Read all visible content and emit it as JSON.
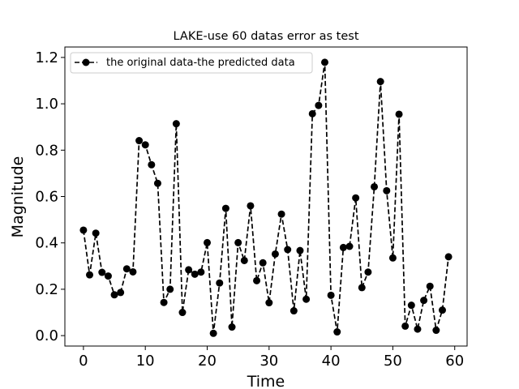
{
  "chart_data": {
    "type": "line",
    "title": "LAKE-use 60 datas error as test",
    "xlabel": "Time",
    "ylabel": "Magnitude",
    "xlim": [
      -3,
      62
    ],
    "ylim": [
      -0.045,
      1.245
    ],
    "xticks": [
      0,
      10,
      20,
      30,
      40,
      50,
      60
    ],
    "yticks": [
      0.0,
      0.2,
      0.4,
      0.6,
      0.8,
      1.0,
      1.2
    ],
    "xtick_labels": [
      "0",
      "10",
      "20",
      "30",
      "40",
      "50",
      "60"
    ],
    "ytick_labels": [
      "0.0",
      "0.2",
      "0.4",
      "0.6",
      "0.8",
      "1.0",
      "1.2"
    ],
    "legend_position": "top-left",
    "series": [
      {
        "name": "the original data-the predicted data",
        "color": "#000000",
        "linestyle": "dashed",
        "marker": "circle",
        "x": [
          0,
          1,
          2,
          3,
          4,
          5,
          6,
          7,
          8,
          9,
          10,
          11,
          12,
          13,
          14,
          15,
          16,
          17,
          18,
          19,
          20,
          21,
          22,
          23,
          24,
          25,
          26,
          27,
          28,
          29,
          30,
          31,
          32,
          33,
          34,
          35,
          36,
          37,
          38,
          39,
          40,
          41,
          42,
          43,
          44,
          45,
          46,
          47,
          48,
          49,
          50,
          51,
          52,
          53,
          54,
          55,
          56,
          57,
          58,
          59
        ],
        "values": [
          0.455,
          0.262,
          0.442,
          0.273,
          0.257,
          0.176,
          0.186,
          0.288,
          0.275,
          0.841,
          0.823,
          0.737,
          0.657,
          0.143,
          0.2,
          0.914,
          0.1,
          0.284,
          0.265,
          0.274,
          0.401,
          0.01,
          0.227,
          0.549,
          0.037,
          0.401,
          0.324,
          0.56,
          0.237,
          0.314,
          0.142,
          0.352,
          0.524,
          0.371,
          0.107,
          0.367,
          0.157,
          0.957,
          0.993,
          1.179,
          0.174,
          0.016,
          0.38,
          0.385,
          0.594,
          0.207,
          0.274,
          0.642,
          1.096,
          0.625,
          0.335,
          0.955,
          0.041,
          0.131,
          0.028,
          0.152,
          0.213,
          0.023,
          0.11,
          0.34
        ]
      }
    ]
  }
}
